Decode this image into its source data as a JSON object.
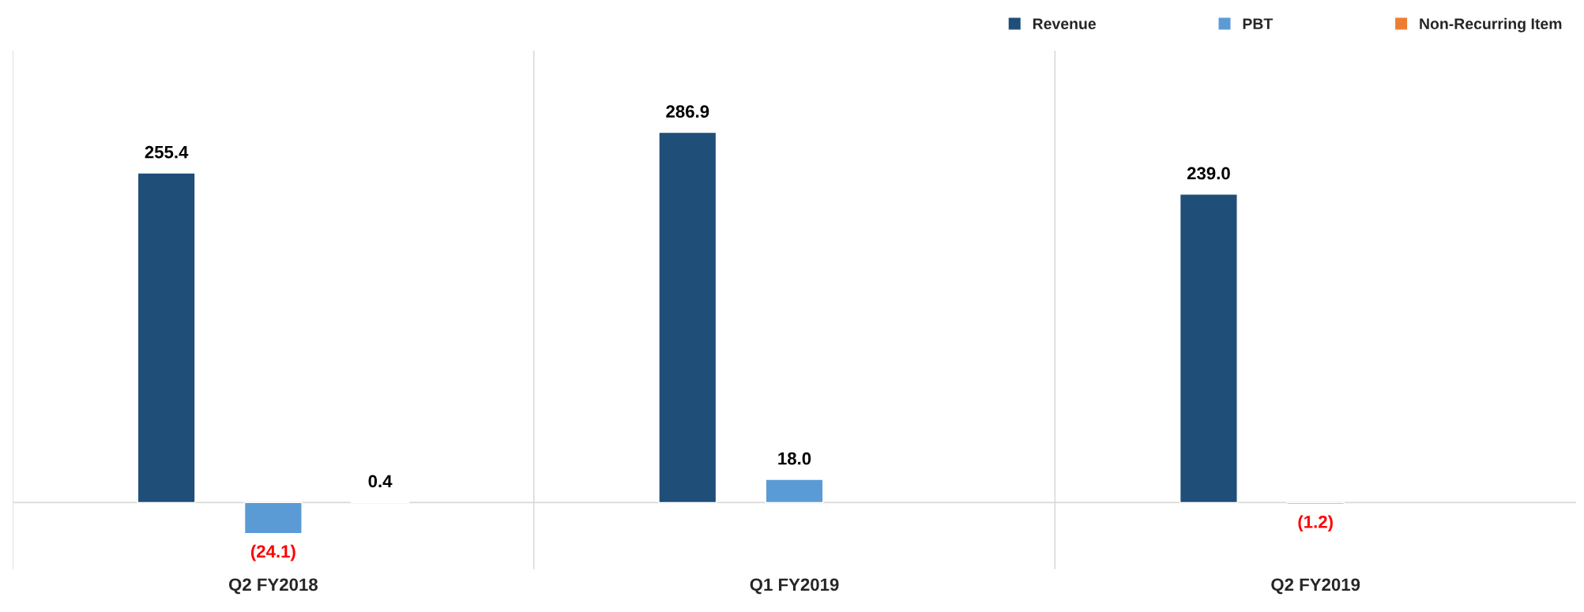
{
  "chart_data": {
    "type": "bar",
    "categories": [
      "Q2 FY2018",
      "Q1 FY2019",
      "Q2 FY2019"
    ],
    "series": [
      {
        "name": "Revenue",
        "color": "#1f4e79",
        "values": [
          255.4,
          286.9,
          239.0
        ],
        "value_labels": [
          "255.4",
          "286.9",
          "239.0"
        ]
      },
      {
        "name": "PBT",
        "color": "#5b9bd5",
        "values": [
          -24.1,
          18.0,
          -1.2
        ],
        "value_labels": [
          "(24.1)",
          "18.0",
          "(1.2)"
        ]
      },
      {
        "name": "Non-Recurring Item",
        "color": "#ed7d31",
        "values": [
          0.4,
          null,
          null
        ],
        "value_labels": [
          "0.4",
          null,
          null
        ]
      }
    ],
    "legend": "top right",
    "grid": false
  }
}
